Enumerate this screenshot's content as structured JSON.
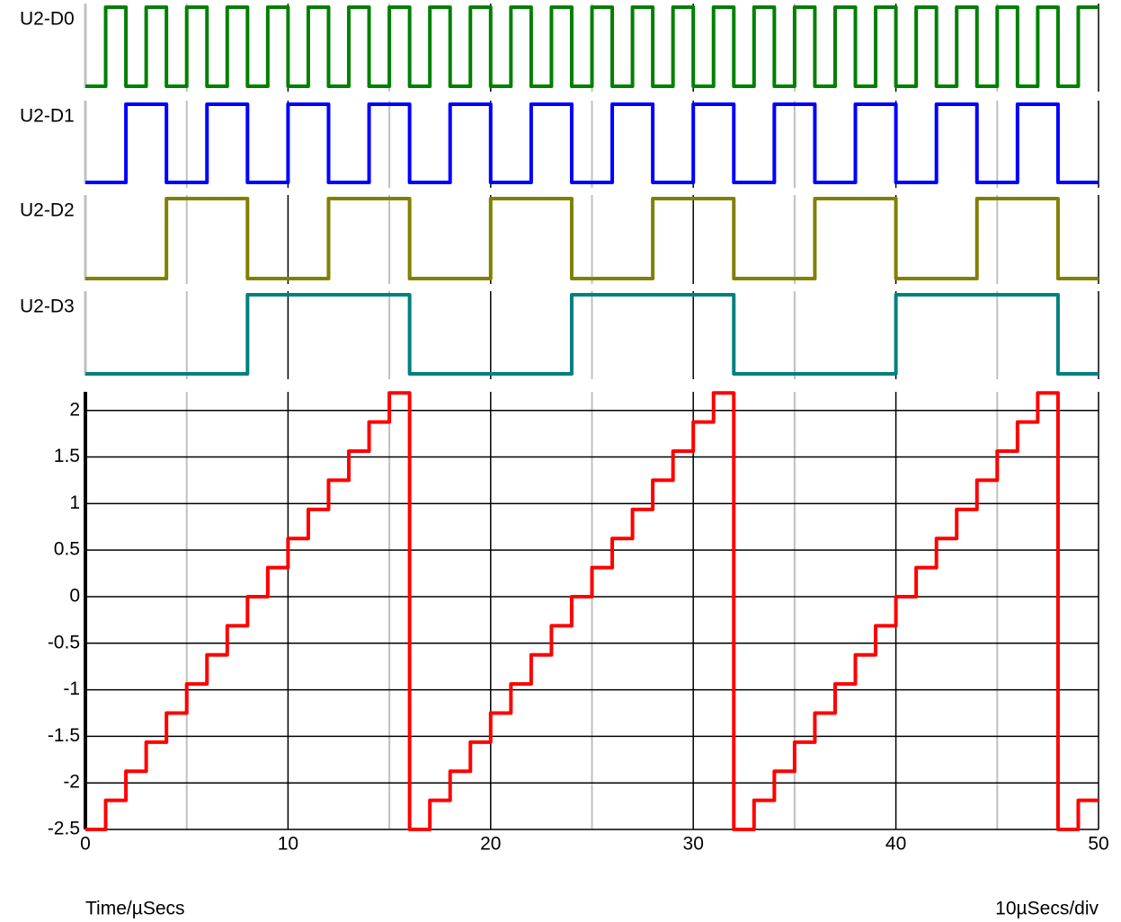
{
  "chart_data": [
    {
      "type": "digital",
      "x": [
        0,
        1,
        2,
        3,
        4,
        5,
        6,
        7,
        8,
        9,
        10,
        11,
        12,
        13,
        14,
        15,
        16,
        17,
        18,
        19,
        20,
        21,
        22,
        23,
        24,
        25,
        26,
        27,
        28,
        29,
        30,
        31,
        32,
        33,
        34,
        35,
        36,
        37,
        38,
        39,
        40,
        41,
        42,
        43,
        44,
        45,
        46,
        47,
        48,
        49,
        50
      ],
      "series": [
        {
          "name": "U2-D0",
          "color": "#008000",
          "values": [
            0,
            1,
            0,
            1,
            0,
            1,
            0,
            1,
            0,
            1,
            0,
            1,
            0,
            1,
            0,
            1,
            0,
            1,
            0,
            1,
            0,
            1,
            0,
            1,
            0,
            1,
            0,
            1,
            0,
            1,
            0,
            1,
            0,
            1,
            0,
            1,
            0,
            1,
            0,
            1,
            0,
            1,
            0,
            1,
            0,
            1,
            0,
            1,
            0,
            1,
            1
          ]
        },
        {
          "name": "U2-D1",
          "color": "#0000ff",
          "values": [
            0,
            0,
            1,
            1,
            0,
            0,
            1,
            1,
            0,
            0,
            1,
            1,
            0,
            0,
            1,
            1,
            0,
            0,
            1,
            1,
            0,
            0,
            1,
            1,
            0,
            0,
            1,
            1,
            0,
            0,
            1,
            1,
            0,
            0,
            1,
            1,
            0,
            0,
            1,
            1,
            0,
            0,
            1,
            1,
            0,
            0,
            1,
            1,
            0,
            0,
            0
          ]
        },
        {
          "name": "U2-D2",
          "color": "#808000",
          "values": [
            0,
            0,
            0,
            0,
            1,
            1,
            1,
            1,
            0,
            0,
            0,
            0,
            1,
            1,
            1,
            1,
            0,
            0,
            0,
            0,
            1,
            1,
            1,
            1,
            0,
            0,
            0,
            0,
            1,
            1,
            1,
            1,
            0,
            0,
            0,
            0,
            1,
            1,
            1,
            1,
            0,
            0,
            0,
            0,
            1,
            1,
            1,
            1,
            0,
            0,
            0
          ]
        },
        {
          "name": "U2-D3",
          "color": "#008080",
          "values": [
            0,
            0,
            0,
            0,
            0,
            0,
            0,
            0,
            1,
            1,
            1,
            1,
            1,
            1,
            1,
            1,
            0,
            0,
            0,
            0,
            0,
            0,
            0,
            0,
            1,
            1,
            1,
            1,
            1,
            1,
            1,
            1,
            0,
            0,
            0,
            0,
            0,
            0,
            0,
            0,
            1,
            1,
            1,
            1,
            1,
            1,
            1,
            1,
            0,
            0,
            0
          ]
        }
      ]
    },
    {
      "type": "step",
      "x": [
        0,
        1,
        2,
        3,
        4,
        5,
        6,
        7,
        8,
        9,
        10,
        11,
        12,
        13,
        14,
        15,
        16,
        17,
        18,
        19,
        20,
        21,
        22,
        23,
        24,
        25,
        26,
        27,
        28,
        29,
        30,
        31,
        32,
        33,
        34,
        35,
        36,
        37,
        38,
        39,
        40,
        41,
        42,
        43,
        44,
        45,
        46,
        47,
        48,
        49,
        50
      ],
      "values": [
        -2.5,
        -2.1875,
        -1.875,
        -1.5625,
        -1.25,
        -0.9375,
        -0.625,
        -0.3125,
        0,
        0.3125,
        0.625,
        0.9375,
        1.25,
        1.5625,
        1.875,
        2.1875,
        -2.5,
        -2.1875,
        -1.875,
        -1.5625,
        -1.25,
        -0.9375,
        -0.625,
        -0.3125,
        0,
        0.3125,
        0.625,
        0.9375,
        1.25,
        1.5625,
        1.875,
        2.1875,
        -2.5,
        -2.1875,
        -1.875,
        -1.5625,
        -1.25,
        -0.9375,
        -0.625,
        -0.3125,
        0,
        0.3125,
        0.625,
        0.9375,
        1.25,
        1.5625,
        1.875,
        2.1875,
        -2.5,
        -2.1875,
        -2.1875
      ],
      "color": "#ff0000",
      "xlim": [
        0,
        50
      ],
      "xticks": [
        0,
        10,
        20,
        30,
        40,
        50
      ],
      "xminorticks": [
        5,
        15,
        25,
        35,
        45
      ],
      "ylim": [
        -2.5,
        2.2
      ],
      "yticks": [
        -2.5,
        -2,
        -1.5,
        -1,
        -0.5,
        0,
        0.5,
        1,
        1.5,
        2
      ],
      "grid": true,
      "xlabel": "Time/µSecs",
      "xscale_note": "10µSecs/div"
    }
  ]
}
